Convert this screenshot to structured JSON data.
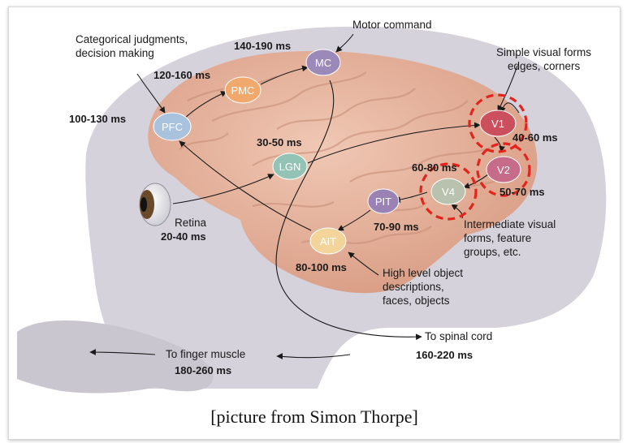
{
  "regions": [
    {
      "id": "pfc",
      "label": "PFC",
      "color": "#a9c2de"
    },
    {
      "id": "pmc",
      "label": "PMC",
      "color": "#f0a86d"
    },
    {
      "id": "mc",
      "label": "MC",
      "color": "#9b89b9"
    },
    {
      "id": "lgn",
      "label": "LGN",
      "color": "#93c3b4"
    },
    {
      "id": "v1",
      "label": "V1",
      "color": "#cc4f5e"
    },
    {
      "id": "v2",
      "label": "V2",
      "color": "#c76b8a"
    },
    {
      "id": "v4",
      "label": "V4",
      "color": "#b8c2ae"
    },
    {
      "id": "pit",
      "label": "PIT",
      "color": "#9a83b4"
    },
    {
      "id": "ait",
      "label": "AIT",
      "color": "#f3d59b"
    }
  ],
  "latencies": {
    "pfc": "100-130 ms",
    "pmc": "120-160 ms",
    "mc": "140-190 ms",
    "lgn": "30-50 ms",
    "v1": "40-60 ms",
    "v2": "50-70 ms",
    "v4": "60-80 ms",
    "pit": "70-90 ms",
    "ait": "80-100 ms",
    "retina": "20-40 ms",
    "spinal": "160-220 ms",
    "finger": "180-260 ms"
  },
  "annotations": {
    "categorical": [
      "Categorical judgments,",
      "decision making"
    ],
    "motor": "Motor command",
    "simple": [
      "Simple visual forms",
      "edges, corners"
    ],
    "intermediate": [
      "Intermediate visual",
      "forms, feature",
      "groups, etc."
    ],
    "high": [
      "High level object",
      "descriptions,",
      "faces, objects"
    ],
    "retina": "Retina",
    "spinal": "To spinal cord",
    "finger": "To finger muscle"
  },
  "caption": "[picture from Simon Thorpe]",
  "colors": {
    "brain": "#e7b29b",
    "head": "#d6d2dc",
    "hand": "#cac6d0",
    "highlight_ring": "#e2241b"
  }
}
